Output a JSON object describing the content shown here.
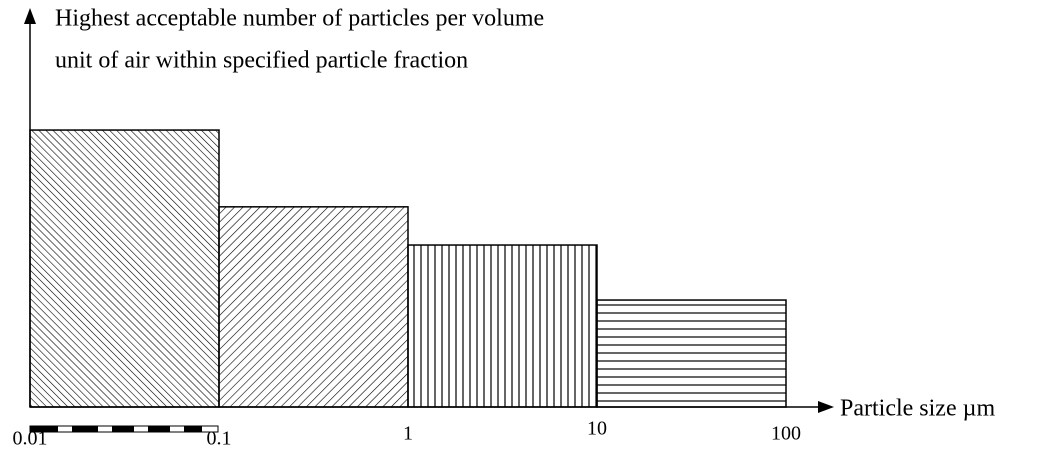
{
  "chart_data": {
    "type": "histogram",
    "ylabel": [
      "Highest acceptable number of particles per volume",
      "unit of air within specified particle fraction"
    ],
    "xlabel": "Particle size µm",
    "bins": [
      0.01,
      0.1,
      1,
      10,
      100
    ],
    "values": [
      72.5,
      52.4,
      42.4,
      28
    ],
    "xlim": [
      0.01,
      100
    ],
    "ylim": [
      0,
      100
    ],
    "xticks": [
      0.01,
      0.1,
      1,
      10,
      100
    ],
    "log_x": true
  }
}
